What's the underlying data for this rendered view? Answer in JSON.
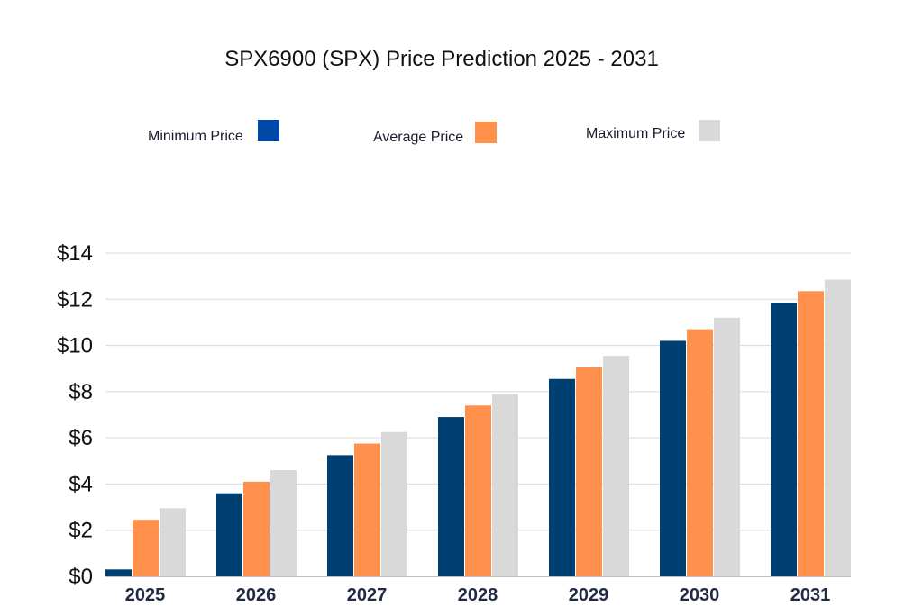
{
  "chart_data": {
    "type": "bar",
    "title": "SPX6900 (SPX) Price Prediction 2025 - 2031",
    "xlabel": "",
    "ylabel": "",
    "categories": [
      "2025",
      "2026",
      "2027",
      "2028",
      "2029",
      "2030",
      "2031"
    ],
    "series": [
      {
        "name": "Minimum Price",
        "color": "#003f72",
        "values": [
          0.3,
          3.6,
          5.25,
          6.9,
          8.55,
          10.2,
          11.85
        ]
      },
      {
        "name": "Average Price",
        "color": "#ff914d",
        "values": [
          2.45,
          4.1,
          5.75,
          7.4,
          9.05,
          10.7,
          12.35
        ]
      },
      {
        "name": "Maximum Price",
        "color": "#d9d9d9",
        "values": [
          2.95,
          4.6,
          6.25,
          7.9,
          9.55,
          11.2,
          12.85
        ]
      }
    ],
    "legend_colors": [
      "#0049a8",
      "#ff914d",
      "#d9d9d9"
    ],
    "ylim": [
      0,
      14
    ],
    "yticks": [
      0,
      2,
      4,
      6,
      8,
      10,
      12,
      14
    ],
    "ytick_labels": [
      "$0",
      "$2",
      "$4",
      "$6",
      "$8",
      "$10",
      "$12",
      "$14"
    ],
    "grid": true,
    "legend_position": "top"
  }
}
